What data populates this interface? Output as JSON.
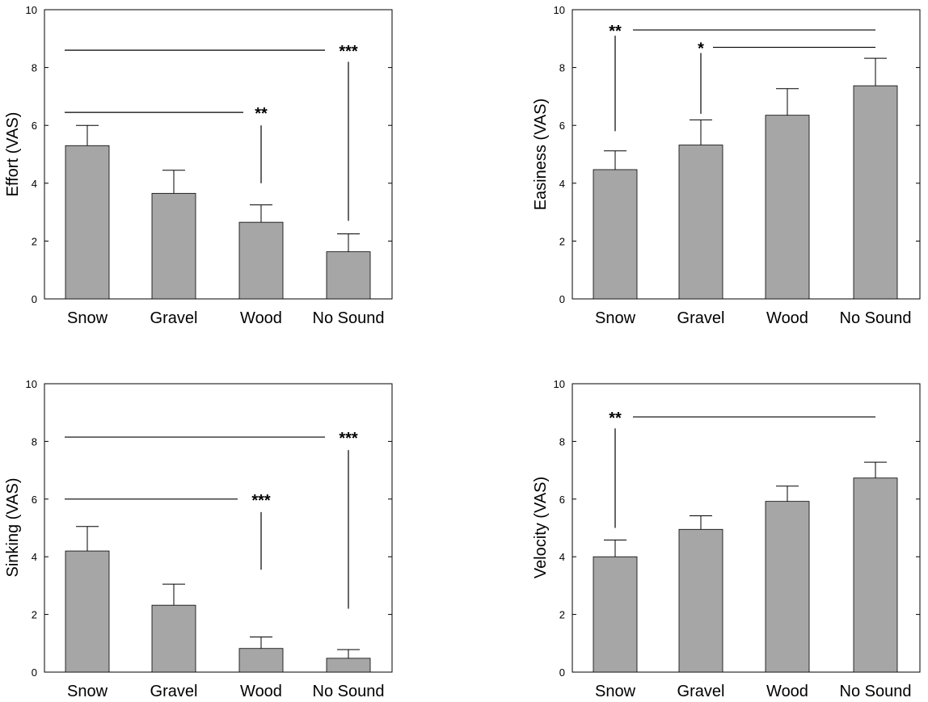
{
  "chart_data": [
    {
      "type": "bar",
      "ylabel": "Effort (VAS)",
      "categories": [
        "Snow",
        "Gravel",
        "Wood",
        "No Sound"
      ],
      "values": [
        5.3,
        3.65,
        2.65,
        1.63
      ],
      "errors": [
        0.7,
        0.8,
        0.6,
        0.62
      ],
      "ylim": [
        0,
        10
      ],
      "yticks": [
        "0",
        "2",
        "4",
        "6",
        "8",
        "10"
      ],
      "bar_color": "#a6a6a6",
      "significance": [
        {
          "label": "***",
          "from": "Snow",
          "to": "No Sound",
          "y": 8.6
        },
        {
          "label": "**",
          "from": "Snow",
          "to": "Wood",
          "y": 6.45
        }
      ]
    },
    {
      "type": "bar",
      "ylabel": "Easiness (VAS)",
      "categories": [
        "Snow",
        "Gravel",
        "Wood",
        "No Sound"
      ],
      "values": [
        4.47,
        5.32,
        6.35,
        7.37
      ],
      "errors": [
        0.65,
        0.87,
        0.92,
        0.95
      ],
      "ylim": [
        0,
        10
      ],
      "yticks": [
        "0",
        "2",
        "4",
        "6",
        "8",
        "10"
      ],
      "bar_color": "#a6a6a6",
      "significance": [
        {
          "label": "**",
          "from": "Snow",
          "to": "No Sound",
          "y": 9.3
        },
        {
          "label": "*",
          "from": "Gravel",
          "to": "No Sound",
          "y": 8.7
        }
      ]
    },
    {
      "type": "bar",
      "ylabel": "Sinking (VAS)",
      "categories": [
        "Snow",
        "Gravel",
        "Wood",
        "No Sound"
      ],
      "values": [
        4.2,
        2.32,
        0.82,
        0.48
      ],
      "errors": [
        0.85,
        0.73,
        0.4,
        0.3
      ],
      "ylim": [
        0,
        10
      ],
      "yticks": [
        "0",
        "2",
        "4",
        "6",
        "8",
        "10"
      ],
      "bar_color": "#a6a6a6",
      "significance": [
        {
          "label": "***",
          "from": "Snow",
          "to": "No Sound",
          "y": 8.15
        },
        {
          "label": "***",
          "from": "Snow",
          "to": "Wood",
          "y": 6.0
        }
      ]
    },
    {
      "type": "bar",
      "ylabel": "Velocity (VAS)",
      "categories": [
        "Snow",
        "Gravel",
        "Wood",
        "No Sound"
      ],
      "values": [
        4.0,
        4.95,
        5.92,
        6.73
      ],
      "errors": [
        0.58,
        0.47,
        0.53,
        0.55
      ],
      "ylim": [
        0,
        10
      ],
      "yticks": [
        "0",
        "2",
        "4",
        "6",
        "8",
        "10"
      ],
      "bar_color": "#a6a6a6",
      "significance": [
        {
          "label": "**",
          "from": "Snow",
          "to": "No Sound",
          "y": 8.85
        }
      ]
    }
  ]
}
